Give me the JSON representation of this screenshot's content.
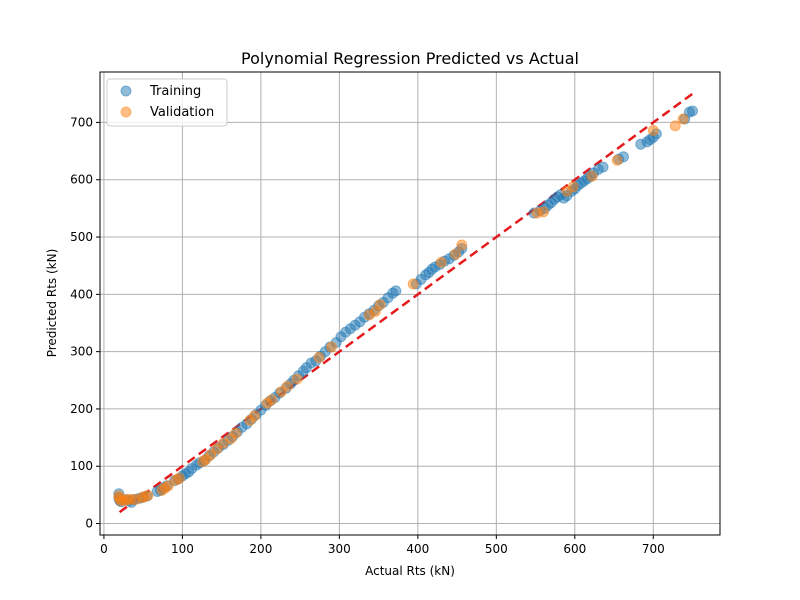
{
  "chart_data": {
    "type": "scatter",
    "title": "Polynomial Regression Predicted vs Actual",
    "xlabel": "Actual Rts (kN)",
    "ylabel": "Predicted Rts (kN)",
    "xlim": [
      -5,
      785
    ],
    "ylim": [
      -20,
      788
    ],
    "xticks": [
      0,
      100,
      200,
      300,
      400,
      500,
      600,
      700
    ],
    "yticks": [
      0,
      100,
      200,
      300,
      400,
      500,
      600,
      700
    ],
    "grid": true,
    "legend_position": "top-left",
    "reference_line": {
      "style": "dashed",
      "color": "#e41a1c",
      "x": [
        20,
        752
      ],
      "y": [
        20,
        752
      ]
    },
    "series": [
      {
        "name": "Training",
        "color": "#1f77b4",
        "points": [
          [
            19,
            52
          ],
          [
            19,
            45
          ],
          [
            20,
            40
          ],
          [
            22,
            38
          ],
          [
            28,
            42
          ],
          [
            32,
            40
          ],
          [
            35,
            37
          ],
          [
            38,
            42
          ],
          [
            45,
            44
          ],
          [
            50,
            46
          ],
          [
            55,
            48
          ],
          [
            68,
            56
          ],
          [
            72,
            58
          ],
          [
            76,
            62
          ],
          [
            80,
            66
          ],
          [
            90,
            75
          ],
          [
            95,
            78
          ],
          [
            100,
            83
          ],
          [
            104,
            87
          ],
          [
            108,
            90
          ],
          [
            112,
            96
          ],
          [
            118,
            102
          ],
          [
            122,
            106
          ],
          [
            128,
            110
          ],
          [
            134,
            118
          ],
          [
            140,
            125
          ],
          [
            146,
            132
          ],
          [
            152,
            138
          ],
          [
            158,
            145
          ],
          [
            164,
            152
          ],
          [
            170,
            160
          ],
          [
            176,
            168
          ],
          [
            182,
            174
          ],
          [
            188,
            182
          ],
          [
            194,
            190
          ],
          [
            200,
            198
          ],
          [
            206,
            206
          ],
          [
            212,
            214
          ],
          [
            218,
            220
          ],
          [
            224,
            228
          ],
          [
            232,
            236
          ],
          [
            238,
            244
          ],
          [
            242,
            250
          ],
          [
            248,
            258
          ],
          [
            254,
            266
          ],
          [
            258,
            272
          ],
          [
            264,
            280
          ],
          [
            270,
            284
          ],
          [
            276,
            292
          ],
          [
            282,
            300
          ],
          [
            288,
            308
          ],
          [
            296,
            316
          ],
          [
            302,
            326
          ],
          [
            308,
            334
          ],
          [
            314,
            340
          ],
          [
            320,
            346
          ],
          [
            326,
            352
          ],
          [
            332,
            360
          ],
          [
            338,
            366
          ],
          [
            344,
            372
          ],
          [
            350,
            380
          ],
          [
            356,
            386
          ],
          [
            362,
            394
          ],
          [
            368,
            402
          ],
          [
            372,
            406
          ],
          [
            398,
            418
          ],
          [
            404,
            426
          ],
          [
            410,
            434
          ],
          [
            414,
            438
          ],
          [
            418,
            444
          ],
          [
            422,
            448
          ],
          [
            428,
            452
          ],
          [
            434,
            458
          ],
          [
            440,
            462
          ],
          [
            446,
            468
          ],
          [
            452,
            474
          ],
          [
            456,
            480
          ],
          [
            548,
            542
          ],
          [
            556,
            546
          ],
          [
            562,
            550
          ],
          [
            566,
            556
          ],
          [
            570,
            560
          ],
          [
            574,
            566
          ],
          [
            578,
            570
          ],
          [
            582,
            574
          ],
          [
            586,
            568
          ],
          [
            590,
            572
          ],
          [
            596,
            580
          ],
          [
            600,
            584
          ],
          [
            604,
            590
          ],
          [
            608,
            594
          ],
          [
            612,
            598
          ],
          [
            616,
            602
          ],
          [
            620,
            606
          ],
          [
            624,
            612
          ],
          [
            630,
            618
          ],
          [
            636,
            622
          ],
          [
            656,
            636
          ],
          [
            662,
            640
          ],
          [
            684,
            662
          ],
          [
            692,
            666
          ],
          [
            696,
            670
          ],
          [
            700,
            674
          ],
          [
            704,
            680
          ],
          [
            740,
            706
          ],
          [
            746,
            718
          ],
          [
            750,
            720
          ]
        ]
      },
      {
        "name": "Validation",
        "color": "#ff7f0e",
        "points": [
          [
            19,
            48
          ],
          [
            20,
            44
          ],
          [
            21,
            40
          ],
          [
            26,
            40
          ],
          [
            30,
            42
          ],
          [
            34,
            42
          ],
          [
            40,
            42
          ],
          [
            48,
            45
          ],
          [
            52,
            47
          ],
          [
            56,
            49
          ],
          [
            74,
            58
          ],
          [
            78,
            62
          ],
          [
            82,
            66
          ],
          [
            92,
            76
          ],
          [
            96,
            79
          ],
          [
            126,
            108
          ],
          [
            130,
            112
          ],
          [
            136,
            120
          ],
          [
            144,
            130
          ],
          [
            152,
            140
          ],
          [
            162,
            148
          ],
          [
            168,
            158
          ],
          [
            186,
            180
          ],
          [
            192,
            188
          ],
          [
            208,
            210
          ],
          [
            214,
            216
          ],
          [
            226,
            230
          ],
          [
            234,
            240
          ],
          [
            246,
            252
          ],
          [
            274,
            290
          ],
          [
            290,
            308
          ],
          [
            338,
            364
          ],
          [
            346,
            370
          ],
          [
            352,
            382
          ],
          [
            394,
            418
          ],
          [
            430,
            456
          ],
          [
            448,
            470
          ],
          [
            456,
            486
          ],
          [
            552,
            542
          ],
          [
            560,
            544
          ],
          [
            590,
            580
          ],
          [
            598,
            588
          ],
          [
            622,
            606
          ],
          [
            654,
            634
          ],
          [
            700,
            686
          ],
          [
            728,
            694
          ],
          [
            738,
            706
          ]
        ]
      }
    ]
  }
}
